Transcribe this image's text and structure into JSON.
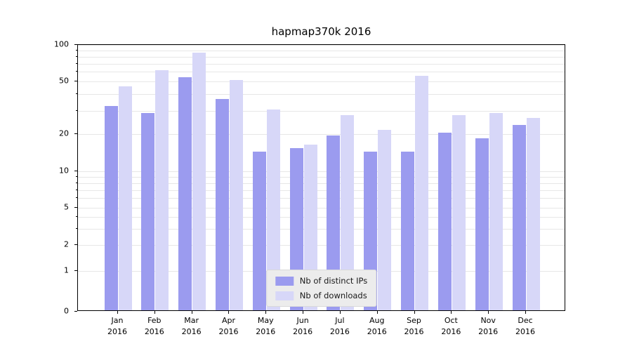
{
  "chart_data": {
    "type": "bar",
    "title": "hapmap370k 2016",
    "scale": "symlog",
    "grid": true,
    "legend_position": "lower center",
    "year_label": "2016",
    "categories": [
      "Jan",
      "Feb",
      "Mar",
      "Apr",
      "May",
      "Jun",
      "Jul",
      "Aug",
      "Sep",
      "Oct",
      "Nov",
      "Dec"
    ],
    "series": [
      {
        "name": "Nb of distinct IPs",
        "color": "#9b9bef",
        "values": [
          32,
          28,
          53,
          36,
          14,
          15,
          19,
          14,
          14,
          20,
          18,
          23
        ]
      },
      {
        "name": "Nb of downloads",
        "color": "#d7d7f8",
        "values": [
          45,
          60,
          84,
          50,
          30,
          16,
          27,
          21,
          54,
          27,
          28,
          26
        ]
      }
    ],
    "y_ticks": [
      0,
      1,
      2,
      5,
      10,
      20,
      50,
      100
    ],
    "ylim": [
      0,
      100
    ]
  }
}
